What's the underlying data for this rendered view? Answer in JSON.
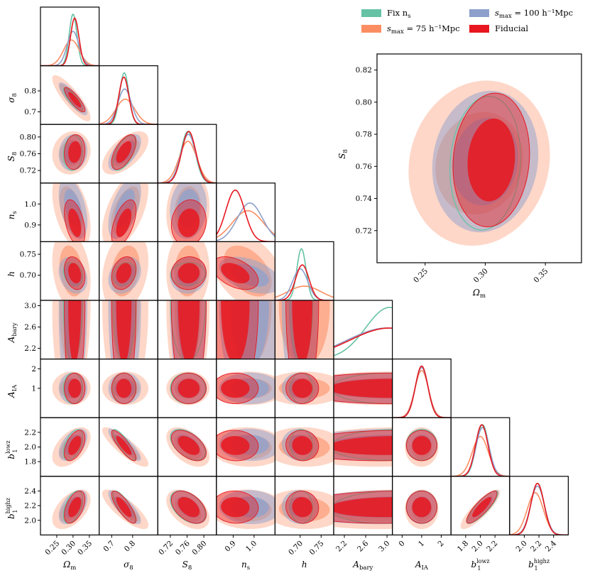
{
  "colors": {
    "fix_ns": "#66c2a5",
    "smax75": "#fc8d62",
    "smax100": "#8da0cb",
    "fiducial": "#e8171f"
  },
  "legend": {
    "placement": "top-right",
    "entries": [
      {
        "key": "fix_ns",
        "label": "Fix n",
        "sub": "s"
      },
      {
        "key": "smax100",
        "label": "s",
        "sub": "max",
        "rest": " = 100 h⁻¹Mpc"
      },
      {
        "key": "smax75",
        "label": "s",
        "sub": "max",
        "rest": " = 75 h⁻¹Mpc"
      },
      {
        "key": "fiducial",
        "label": "Fiducial"
      }
    ]
  },
  "chart_data": [
    {
      "type": "corner",
      "parameters": [
        {
          "key": "om",
          "label": "Ω",
          "sub": "m",
          "range": [
            0.2,
            0.38
          ],
          "ticks": [
            "0.25",
            "0.30",
            "0.35"
          ],
          "tick_values": [
            0.25,
            0.3,
            0.35
          ]
        },
        {
          "key": "s8",
          "label": "σ",
          "sub": "8",
          "range": [
            0.64,
            0.92
          ],
          "ticks": [
            "0.7",
            "0.8"
          ],
          "tick_values": [
            0.7,
            0.8
          ]
        },
        {
          "key": "S8",
          "label": "S",
          "sub": "8",
          "range": [
            0.69,
            0.83
          ],
          "ticks": [
            "0.72",
            "0.76",
            "0.80"
          ],
          "tick_values": [
            0.72,
            0.76,
            0.8
          ]
        },
        {
          "key": "ns",
          "label": "n",
          "sub": "s",
          "range": [
            0.82,
            1.1
          ],
          "ticks": [
            "0.9",
            "1.0"
          ],
          "tick_values": [
            0.9,
            1.0
          ]
        },
        {
          "key": "h",
          "label": "h",
          "sub": "",
          "range": [
            0.64,
            0.78
          ],
          "ticks": [
            "0.70",
            "0.75"
          ],
          "tick_values": [
            0.7,
            0.75
          ]
        },
        {
          "key": "Ab",
          "label": "A",
          "sub": "bary",
          "range": [
            2.0,
            3.1
          ],
          "ticks": [
            "2.2",
            "2.6",
            "3.0"
          ],
          "tick_values": [
            2.2,
            2.6,
            3.0
          ]
        },
        {
          "key": "AIA",
          "label": "A",
          "sub": "IA",
          "range": [
            -0.5,
            2.5
          ],
          "ticks": [
            "0",
            "1",
            "2"
          ],
          "tick_values": [
            0,
            1,
            2
          ]
        },
        {
          "key": "b1l",
          "label": "b",
          "sub": "1",
          "sup": "lowz",
          "range": [
            1.6,
            2.4
          ],
          "ticks": [
            "1.8",
            "2.0",
            "2.2"
          ],
          "tick_values": [
            1.8,
            2.0,
            2.2
          ]
        },
        {
          "key": "b1h",
          "label": "b",
          "sub": "1",
          "sup": "highz",
          "range": [
            1.8,
            2.6
          ],
          "ticks": [
            "2.0",
            "2.2",
            "2.4"
          ],
          "tick_values": [
            2.0,
            2.2,
            2.4
          ]
        }
      ],
      "y_ticks": {
        "s8": [
          "0.7",
          "0.8"
        ],
        "S8": [
          "0.72",
          "0.76",
          "0.80"
        ],
        "ns": [
          "0.9",
          "1.0"
        ],
        "h": [
          "0.70",
          "0.75"
        ],
        "Ab": [
          "2.2",
          "2.6",
          "3.0"
        ],
        "AIA": [
          "1",
          "2"
        ],
        "b1l": [
          "1.8",
          "2.0",
          "2.2"
        ],
        "b1h": [
          "2.0",
          "2.2",
          "2.4"
        ]
      },
      "series": [
        {
          "name": "fix_ns",
          "mean": [
            0.3,
            0.76,
            0.762,
            0.965,
            0.703,
            3.05,
            1.0,
            2.03,
            2.18
          ],
          "sd": [
            0.012,
            0.022,
            0.017,
            0.0,
            0.011,
            0.45,
            0.32,
            0.085,
            0.09
          ]
        },
        {
          "name": "smax75",
          "mean": [
            0.295,
            0.765,
            0.762,
            0.97,
            0.71,
            3.0,
            1.0,
            2.0,
            2.15
          ],
          "sd": [
            0.024,
            0.045,
            0.021,
            0.075,
            0.04,
            0.75,
            0.35,
            0.11,
            0.11
          ]
        },
        {
          "name": "smax100",
          "mean": [
            0.3,
            0.762,
            0.763,
            0.98,
            0.7,
            3.0,
            1.0,
            2.03,
            2.18
          ],
          "sd": [
            0.018,
            0.032,
            0.018,
            0.06,
            0.018,
            0.75,
            0.33,
            0.09,
            0.095
          ]
        },
        {
          "name": "fiducial",
          "mean": [
            0.305,
            0.758,
            0.764,
            0.91,
            0.705,
            3.05,
            1.0,
            2.02,
            2.18
          ],
          "sd": [
            0.013,
            0.024,
            0.017,
            0.045,
            0.016,
            0.75,
            0.32,
            0.085,
            0.09
          ]
        }
      ],
      "correlations": {
        "om-s8": -0.85,
        "om-S8": 0.1,
        "om-ns": -0.45,
        "om-h": -0.25,
        "om-Ab": 0.05,
        "om-AIA": 0.0,
        "om-b1l": 0.5,
        "om-b1h": 0.5,
        "s8-S8": 0.6,
        "s8-ns": 0.55,
        "s8-h": 0.25,
        "s8-Ab": 0.0,
        "s8-AIA": 0.0,
        "s8-b1l": -0.85,
        "s8-b1h": -0.8,
        "S8-ns": 0.1,
        "S8-h": 0.05,
        "S8-Ab": 0.0,
        "S8-AIA": 0.0,
        "S8-b1l": -0.5,
        "S8-b1h": -0.45,
        "ns-h": -0.45,
        "ns-Ab": 0.0,
        "ns-AIA": 0.0,
        "ns-b1l": -0.05,
        "ns-b1h": -0.05,
        "h-Ab": 0.0,
        "h-AIA": 0.0,
        "h-b1l": -0.05,
        "h-b1h": -0.05,
        "Ab-AIA": 0.0,
        "Ab-b1l": 0.1,
        "Ab-b1h": 0.1,
        "AIA-b1l": 0.0,
        "AIA-b1h": 0.0,
        "b1l-b1h": 0.85
      }
    },
    {
      "type": "contour",
      "title": "",
      "xlabel": {
        "label": "Ω",
        "sub": "m"
      },
      "ylabel": {
        "label": "S",
        "sub": "8"
      },
      "xlim": [
        0.21,
        0.38
      ],
      "ylim": [
        0.7,
        0.83
      ],
      "xticks": [
        "0.25",
        "0.30",
        "0.35"
      ],
      "xtick_values": [
        0.25,
        0.3,
        0.35
      ],
      "yticks": [
        "0.72",
        "0.74",
        "0.76",
        "0.78",
        "0.80",
        "0.82"
      ],
      "ytick_values": [
        0.72,
        0.74,
        0.76,
        0.78,
        0.8,
        0.82
      ]
    }
  ]
}
